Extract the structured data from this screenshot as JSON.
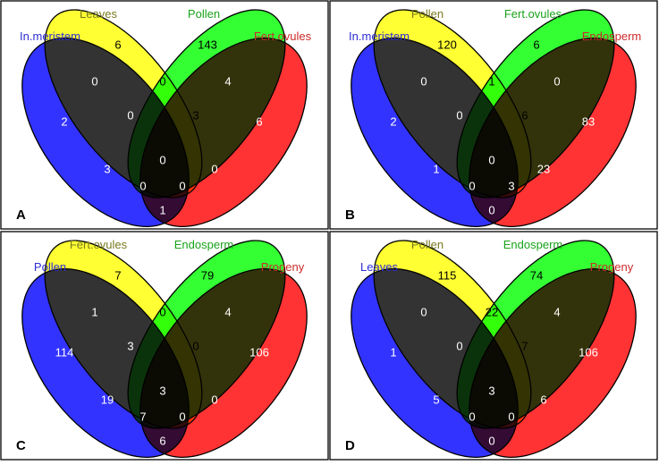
{
  "figure": {
    "colors": {
      "set1": "#3333ff",
      "set2": "#ffff33",
      "set3": "#33ff33",
      "set4": "#ff3333",
      "label_set1": "#2d2dd6",
      "label_set2": "#7a7a1f",
      "label_set3": "#1aa31a",
      "label_set4": "#cc2a2a"
    },
    "panels": [
      {
        "letter": "A",
        "set_labels": [
          "In.meristem",
          "Leaves",
          "Pollen",
          "Fert.ovules"
        ],
        "counts": {
          "only_1": "2",
          "only_2": "6",
          "only_3": "143",
          "only_4": "6",
          "r12": "0",
          "r23": "0",
          "r34": "4",
          "r13": "3",
          "r24": "0",
          "r14": "1",
          "r123": "0",
          "r234": "3",
          "r124": "0",
          "r134": "0",
          "r1234": "0"
        }
      },
      {
        "letter": "B",
        "set_labels": [
          "In.meristem",
          "Pollen",
          "Fert.ovules",
          "Endosperm"
        ],
        "counts": {
          "only_1": "2",
          "only_2": "120",
          "only_3": "6",
          "only_4": "83",
          "r12": "0",
          "r23": "1",
          "r34": "0",
          "r13": "1",
          "r24": "23",
          "r14": "0",
          "r123": "0",
          "r234": "6",
          "r124": "0",
          "r134": "3",
          "r1234": "0"
        }
      },
      {
        "letter": "C",
        "set_labels": [
          "Pollen",
          "Fert.ovules",
          "Endosperm",
          "Progeny"
        ],
        "counts": {
          "only_1": "114",
          "only_2": "7",
          "only_3": "79",
          "only_4": "106",
          "r12": "1",
          "r23": "0",
          "r34": "4",
          "r13": "19",
          "r24": "0",
          "r14": "6",
          "r123": "3",
          "r234": "0",
          "r124": "7",
          "r134": "0",
          "r1234": "3"
        }
      },
      {
        "letter": "D",
        "set_labels": [
          "Leaves",
          "Pollen",
          "Endosperm",
          "Progeny"
        ],
        "counts": {
          "only_1": "1",
          "only_2": "115",
          "only_3": "74",
          "only_4": "106",
          "r12": "0",
          "r23": "22",
          "r34": "4",
          "r13": "5",
          "r24": "6",
          "r14": "0",
          "r123": "0",
          "r234": "7",
          "r124": "0",
          "r134": "0",
          "r1234": "3"
        }
      }
    ]
  }
}
